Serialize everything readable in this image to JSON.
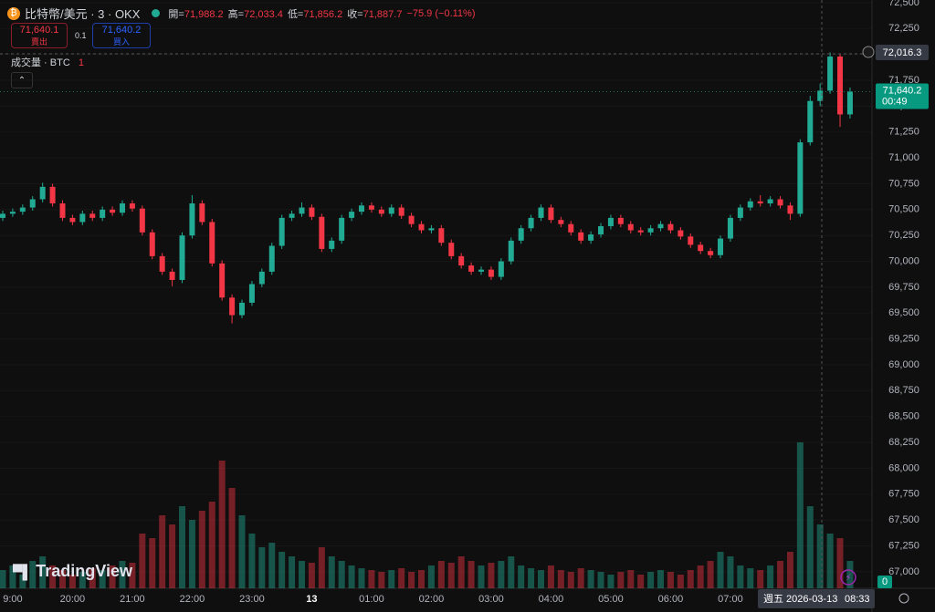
{
  "header": {
    "symbol": "比特幣/美元 · 3 · OKX",
    "ohlc": [
      {
        "label": "開=",
        "value": "71,988.2"
      },
      {
        "label": "高=",
        "value": "72,033.4"
      },
      {
        "label": "低=",
        "value": "71,856.2"
      },
      {
        "label": "收=",
        "value": "71,887.7"
      }
    ],
    "change": "−75.9 (−0.11%)"
  },
  "trade": {
    "sell_price": "71,640.1",
    "sell_label": "賣出",
    "spread": "0.1",
    "buy_price": "71,640.2",
    "buy_label": "買入"
  },
  "volume_legend": {
    "label": "成交量 · BTC",
    "value": "1"
  },
  "crosshair": {
    "price": "72,016.3",
    "date": "週五 2026-03-13",
    "time": "08:33"
  },
  "last_price": {
    "price": "71,640.2",
    "countdown": "00:49",
    "volume": "0"
  },
  "logo": "TradingView",
  "chart_data": {
    "type": "candlestick",
    "grid": true,
    "up_color": "#22ab94",
    "down_color": "#f23645",
    "ylim": [
      66840,
      72526
    ],
    "yticks": [
      {
        "value": 67000,
        "label": "67,000"
      },
      {
        "value": 67250,
        "label": "67,250"
      },
      {
        "value": 67500,
        "label": "67,500"
      },
      {
        "value": 67750,
        "label": "67,750"
      },
      {
        "value": 68000,
        "label": "68,000"
      },
      {
        "value": 68250,
        "label": "68,250"
      },
      {
        "value": 68500,
        "label": "68,500"
      },
      {
        "value": 68750,
        "label": "68,750"
      },
      {
        "value": 69000,
        "label": "69,000"
      },
      {
        "value": 69250,
        "label": "69,250"
      },
      {
        "value": 69500,
        "label": "69,500"
      },
      {
        "value": 69750,
        "label": "69,750"
      },
      {
        "value": 70000,
        "label": "70,000"
      },
      {
        "value": 70250,
        "label": "70,250"
      },
      {
        "value": 70500,
        "label": "70,500"
      },
      {
        "value": 70750,
        "label": "70,750"
      },
      {
        "value": 71000,
        "label": "71,000"
      },
      {
        "value": 71250,
        "label": "71,250"
      },
      {
        "value": 71500,
        "label": "71,500"
      },
      {
        "value": 71750,
        "label": "71,750"
      },
      {
        "value": 72000,
        "label": "72,000"
      },
      {
        "value": 72250,
        "label": "72,250"
      },
      {
        "value": 72500,
        "label": "72,500"
      }
    ],
    "categories": [
      null,
      "9:00",
      null,
      null,
      null,
      null,
      null,
      "20:00",
      null,
      null,
      null,
      null,
      null,
      "21:00",
      null,
      null,
      null,
      null,
      null,
      "22:00",
      null,
      null,
      null,
      null,
      null,
      "23:00",
      null,
      null,
      null,
      null,
      null,
      "13",
      null,
      null,
      null,
      null,
      null,
      "01:00",
      null,
      null,
      null,
      null,
      null,
      "02:00",
      null,
      null,
      null,
      null,
      null,
      "03:00",
      null,
      null,
      null,
      null,
      null,
      "04:00",
      null,
      null,
      null,
      null,
      null,
      "05:00",
      null,
      null,
      null,
      null,
      null,
      "06:00",
      null,
      null,
      null,
      null,
      null,
      "07:00",
      null,
      null,
      null,
      null,
      null,
      null,
      null,
      null,
      null,
      null,
      null,
      null
    ],
    "open": [
      70420,
      70460,
      70480,
      70520,
      70600,
      70720,
      70560,
      70420,
      70380,
      70460,
      70420,
      70500,
      70470,
      70560,
      70510,
      70280,
      70050,
      69900,
      69820,
      70250,
      70560,
      70380,
      69980,
      69650,
      69480,
      69600,
      69780,
      69900,
      70150,
      70420,
      70460,
      70520,
      70430,
      70120,
      70200,
      70420,
      70480,
      70540,
      70500,
      70460,
      70520,
      70440,
      70360,
      70300,
      70320,
      70180,
      70050,
      69960,
      69900,
      69920,
      69850,
      70000,
      70200,
      70320,
      70420,
      70520,
      70400,
      70360,
      70280,
      70200,
      70260,
      70340,
      70420,
      70360,
      70300,
      70280,
      70320,
      70360,
      70300,
      70240,
      70160,
      70100,
      70060,
      70220,
      70420,
      70520,
      70580,
      70560,
      70600,
      70540,
      70460,
      71150,
      71550,
      71650,
      71980,
      71420
    ],
    "high": [
      70490,
      70510,
      70550,
      70630,
      70760,
      70750,
      70590,
      70450,
      70490,
      70490,
      70530,
      70530,
      70590,
      70590,
      70540,
      70310,
      70080,
      69930,
      70280,
      70640,
      70590,
      70410,
      70010,
      69680,
      69630,
      69810,
      69930,
      70180,
      70450,
      70490,
      70570,
      70550,
      70460,
      70230,
      70450,
      70510,
      70570,
      70570,
      70530,
      70550,
      70550,
      70470,
      70390,
      70350,
      70350,
      70210,
      70080,
      69990,
      69950,
      69950,
      70030,
      70230,
      70350,
      70450,
      70550,
      70550,
      70430,
      70390,
      70310,
      70290,
      70370,
      70450,
      70450,
      70390,
      70330,
      70350,
      70390,
      70390,
      70330,
      70270,
      70190,
      70130,
      70250,
      70450,
      70550,
      70610,
      70640,
      70630,
      70630,
      70570,
      71180,
      71600,
      71720,
      72020,
      72000,
      71680
    ],
    "low": [
      70390,
      70430,
      70450,
      70490,
      70570,
      70530,
      70390,
      70350,
      70350,
      70390,
      70390,
      70440,
      70440,
      70480,
      70250,
      70020,
      69870,
      69760,
      69790,
      70220,
      70350,
      69950,
      69620,
      69400,
      69450,
      69570,
      69750,
      69870,
      70120,
      70390,
      70430,
      70400,
      70090,
      70090,
      70170,
      70390,
      70450,
      70470,
      70430,
      70430,
      70410,
      70330,
      70270,
      70270,
      70150,
      70020,
      69930,
      69870,
      69870,
      69820,
      69820,
      69970,
      70170,
      70290,
      70390,
      70370,
      70330,
      70250,
      70170,
      70170,
      70230,
      70310,
      70330,
      70270,
      70250,
      70250,
      70290,
      70270,
      70210,
      70130,
      70070,
      70030,
      70030,
      70190,
      70390,
      70490,
      70530,
      70530,
      70510,
      70400,
      70430,
      71120,
      71500,
      71620,
      71300,
      71380
    ],
    "close": [
      70460,
      70480,
      70520,
      70600,
      70720,
      70560,
      70420,
      70380,
      70460,
      70420,
      70500,
      70470,
      70560,
      70510,
      70280,
      70050,
      69900,
      69820,
      70250,
      70560,
      70380,
      69980,
      69650,
      69480,
      69600,
      69780,
      69900,
      70150,
      70420,
      70460,
      70520,
      70430,
      70120,
      70200,
      70420,
      70480,
      70540,
      70500,
      70460,
      70520,
      70440,
      70360,
      70300,
      70320,
      70180,
      70050,
      69960,
      69900,
      69920,
      69850,
      70000,
      70200,
      70320,
      70420,
      70520,
      70400,
      70360,
      70280,
      70200,
      70260,
      70340,
      70420,
      70360,
      70300,
      70280,
      70320,
      70360,
      70300,
      70240,
      70160,
      70100,
      70060,
      70220,
      70420,
      70520,
      70580,
      70560,
      70600,
      70540,
      70460,
      71150,
      71550,
      71650,
      71980,
      71420,
      71640
    ],
    "volume": [
      20,
      25,
      15,
      30,
      35,
      25,
      20,
      15,
      18,
      22,
      20,
      25,
      30,
      28,
      60,
      55,
      80,
      70,
      90,
      75,
      85,
      95,
      140,
      110,
      80,
      60,
      45,
      50,
      40,
      35,
      30,
      28,
      45,
      35,
      30,
      25,
      22,
      20,
      18,
      20,
      22,
      18,
      20,
      25,
      30,
      28,
      35,
      30,
      25,
      28,
      30,
      35,
      25,
      22,
      20,
      25,
      20,
      18,
      22,
      20,
      18,
      15,
      18,
      20,
      15,
      18,
      20,
      18,
      15,
      20,
      25,
      30,
      40,
      35,
      25,
      22,
      20,
      25,
      30,
      40,
      160,
      90,
      70,
      60,
      55,
      30
    ]
  }
}
